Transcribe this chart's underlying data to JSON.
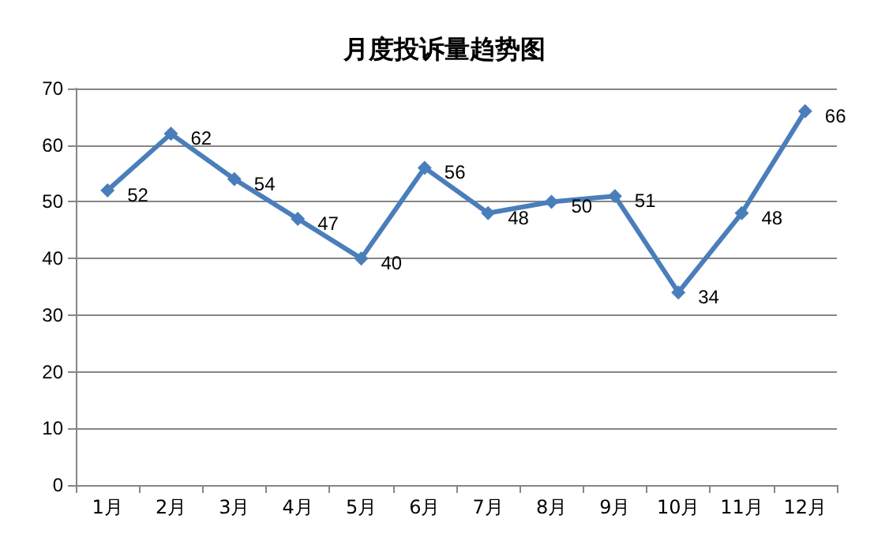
{
  "chart_data": {
    "type": "line",
    "title": "月度投诉量趋势图",
    "categories": [
      "1月",
      "2月",
      "3月",
      "4月",
      "5月",
      "6月",
      "7月",
      "8月",
      "9月",
      "10月",
      "11月",
      "12月"
    ],
    "series": [
      {
        "color": "#4a7ebb",
        "values": [
          52,
          62,
          54,
          47,
          40,
          56,
          48,
          50,
          51,
          34,
          48,
          66
        ]
      }
    ],
    "ylim": [
      0,
      70
    ],
    "yticks": [
      0,
      10,
      20,
      30,
      40,
      50,
      60,
      70
    ],
    "grid": "y",
    "marker": "diamond",
    "line_style": "solid",
    "data_labels": true
  }
}
